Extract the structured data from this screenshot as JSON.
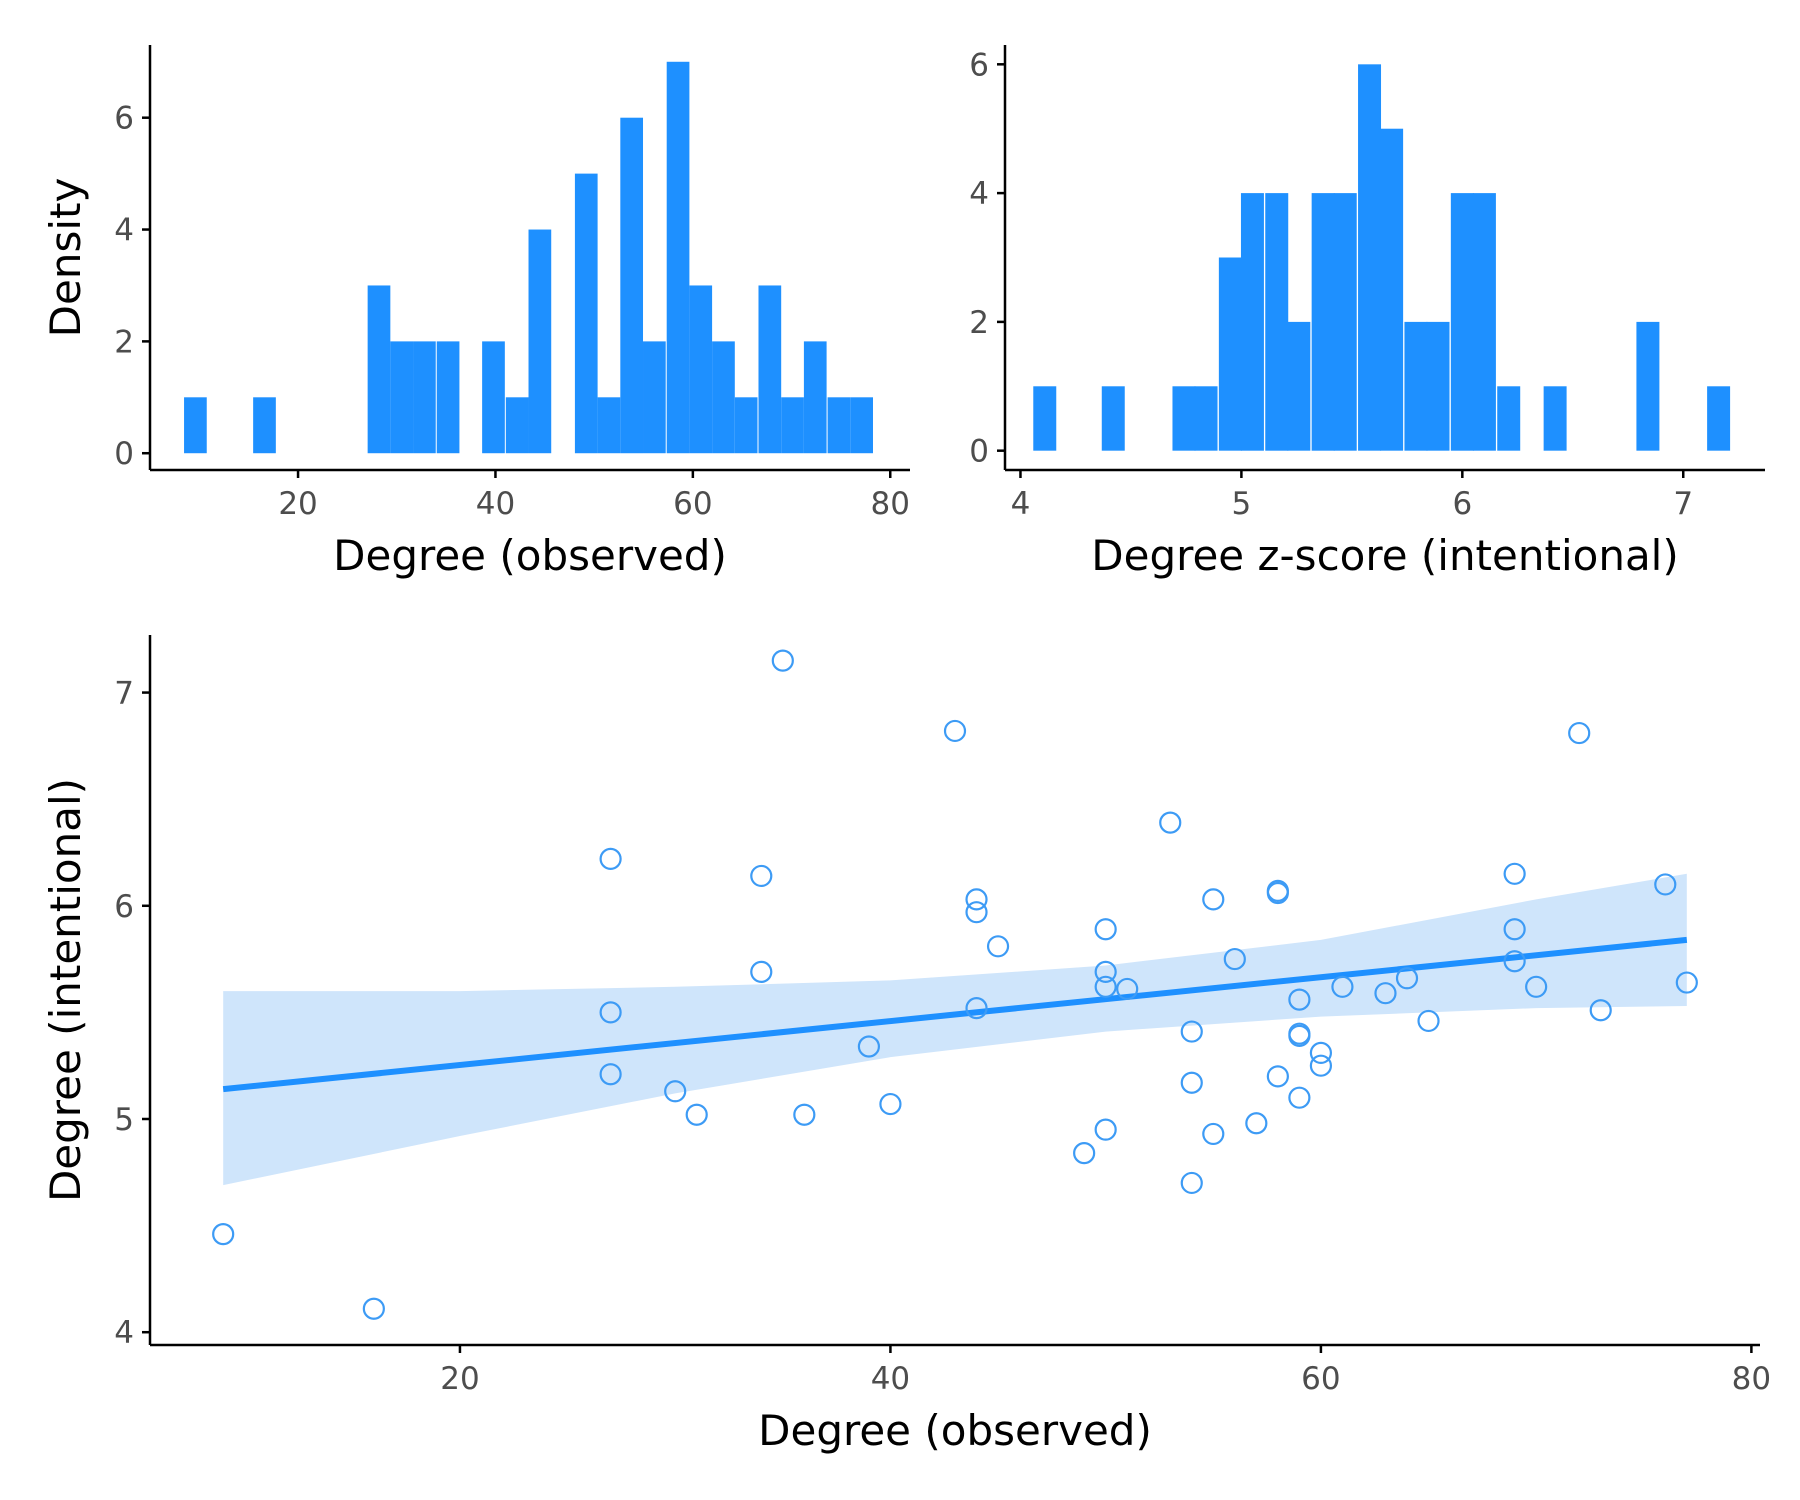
{
  "accent": "#1e90ff",
  "band_color": "#cfe5fb",
  "chart_data": [
    {
      "type": "bar",
      "xlabel": "Degree (observed)",
      "ylabel": "Density",
      "xlim": [
        5,
        82
      ],
      "ylim": [
        -0.3,
        7.3
      ],
      "xticks": [
        20,
        40,
        60,
        80
      ],
      "yticks": [
        0,
        2,
        4,
        6
      ],
      "bin_width": 2.3,
      "bins": [
        {
          "x": 9.6,
          "y": 1
        },
        {
          "x": 16.6,
          "y": 1
        },
        {
          "x": 28.2,
          "y": 3
        },
        {
          "x": 30.5,
          "y": 2
        },
        {
          "x": 32.8,
          "y": 2
        },
        {
          "x": 35.2,
          "y": 2
        },
        {
          "x": 39.8,
          "y": 2
        },
        {
          "x": 42.2,
          "y": 1
        },
        {
          "x": 44.5,
          "y": 4
        },
        {
          "x": 49.2,
          "y": 5
        },
        {
          "x": 51.5,
          "y": 1
        },
        {
          "x": 53.8,
          "y": 6
        },
        {
          "x": 56.1,
          "y": 2
        },
        {
          "x": 58.5,
          "y": 7
        },
        {
          "x": 60.8,
          "y": 3
        },
        {
          "x": 63.1,
          "y": 2
        },
        {
          "x": 65.4,
          "y": 1
        },
        {
          "x": 67.8,
          "y": 3
        },
        {
          "x": 70.1,
          "y": 1
        },
        {
          "x": 72.4,
          "y": 2
        },
        {
          "x": 74.8,
          "y": 1
        },
        {
          "x": 77.1,
          "y": 1
        }
      ]
    },
    {
      "type": "bar",
      "xlabel": "Degree z-score (intentional)",
      "ylabel": "",
      "xlim": [
        3.93,
        7.37
      ],
      "ylim": [
        -0.3,
        6.3
      ],
      "xticks": [
        4,
        5,
        6,
        7
      ],
      "yticks": [
        0,
        2,
        4,
        6
      ],
      "bin_width": 0.104,
      "bins": [
        {
          "x": 4.11,
          "y": 1
        },
        {
          "x": 4.42,
          "y": 1
        },
        {
          "x": 4.74,
          "y": 1
        },
        {
          "x": 4.84,
          "y": 1
        },
        {
          "x": 4.95,
          "y": 3
        },
        {
          "x": 5.05,
          "y": 4
        },
        {
          "x": 5.16,
          "y": 4
        },
        {
          "x": 5.26,
          "y": 2
        },
        {
          "x": 5.37,
          "y": 4
        },
        {
          "x": 5.47,
          "y": 4
        },
        {
          "x": 5.58,
          "y": 6
        },
        {
          "x": 5.68,
          "y": 5
        },
        {
          "x": 5.79,
          "y": 2
        },
        {
          "x": 5.89,
          "y": 2
        },
        {
          "x": 6.0,
          "y": 4
        },
        {
          "x": 6.1,
          "y": 4
        },
        {
          "x": 6.21,
          "y": 1
        },
        {
          "x": 6.42,
          "y": 1
        },
        {
          "x": 6.84,
          "y": 2
        },
        {
          "x": 7.16,
          "y": 1
        }
      ]
    },
    {
      "type": "scatter",
      "xlabel": "Degree (observed)",
      "ylabel": "Degree (intentional)",
      "xlim": [
        5.6,
        80.4
      ],
      "ylim": [
        3.94,
        7.27
      ],
      "xticks": [
        20,
        40,
        60,
        80
      ],
      "yticks": [
        4,
        5,
        6,
        7
      ],
      "grid": false,
      "fit": {
        "x": [
          9,
          77
        ],
        "y": [
          5.14,
          5.84
        ],
        "band": [
          {
            "x": 9,
            "lo": 4.69,
            "hi": 5.6
          },
          {
            "x": 20,
            "lo": 4.92,
            "hi": 5.6
          },
          {
            "x": 30,
            "lo": 5.12,
            "hi": 5.62
          },
          {
            "x": 40,
            "lo": 5.29,
            "hi": 5.65
          },
          {
            "x": 50,
            "lo": 5.41,
            "hi": 5.72
          },
          {
            "x": 60,
            "lo": 5.48,
            "hi": 5.84
          },
          {
            "x": 70,
            "lo": 5.52,
            "hi": 6.03
          },
          {
            "x": 77,
            "lo": 5.53,
            "hi": 6.15
          }
        ]
      },
      "points": [
        {
          "x": 9,
          "y": 4.46
        },
        {
          "x": 16,
          "y": 4.11
        },
        {
          "x": 27,
          "y": 6.22
        },
        {
          "x": 27,
          "y": 5.5
        },
        {
          "x": 27,
          "y": 5.21
        },
        {
          "x": 30,
          "y": 5.13
        },
        {
          "x": 31,
          "y": 5.02
        },
        {
          "x": 34,
          "y": 6.14
        },
        {
          "x": 34,
          "y": 5.69
        },
        {
          "x": 35,
          "y": 7.15
        },
        {
          "x": 36,
          "y": 5.02
        },
        {
          "x": 39,
          "y": 5.34
        },
        {
          "x": 40,
          "y": 5.07
        },
        {
          "x": 43,
          "y": 6.82
        },
        {
          "x": 44,
          "y": 6.03
        },
        {
          "x": 44,
          "y": 5.97
        },
        {
          "x": 44,
          "y": 5.52
        },
        {
          "x": 45,
          "y": 5.81
        },
        {
          "x": 49,
          "y": 4.84
        },
        {
          "x": 50,
          "y": 5.89
        },
        {
          "x": 50,
          "y": 5.69
        },
        {
          "x": 50,
          "y": 5.62
        },
        {
          "x": 50,
          "y": 4.95
        },
        {
          "x": 51,
          "y": 5.61
        },
        {
          "x": 53,
          "y": 6.39
        },
        {
          "x": 54,
          "y": 5.41
        },
        {
          "x": 54,
          "y": 5.17
        },
        {
          "x": 54,
          "y": 4.7
        },
        {
          "x": 55,
          "y": 6.03
        },
        {
          "x": 55,
          "y": 4.93
        },
        {
          "x": 56,
          "y": 5.75
        },
        {
          "x": 57,
          "y": 4.98
        },
        {
          "x": 58,
          "y": 6.07
        },
        {
          "x": 58,
          "y": 6.06
        },
        {
          "x": 58,
          "y": 5.2
        },
        {
          "x": 59,
          "y": 5.56
        },
        {
          "x": 59,
          "y": 5.4
        },
        {
          "x": 59,
          "y": 5.39
        },
        {
          "x": 59,
          "y": 5.1
        },
        {
          "x": 60,
          "y": 5.31
        },
        {
          "x": 60,
          "y": 5.25
        },
        {
          "x": 61,
          "y": 5.62
        },
        {
          "x": 63,
          "y": 5.59
        },
        {
          "x": 64,
          "y": 5.66
        },
        {
          "x": 65,
          "y": 5.46
        },
        {
          "x": 69,
          "y": 6.15
        },
        {
          "x": 69,
          "y": 5.89
        },
        {
          "x": 69,
          "y": 5.74
        },
        {
          "x": 70,
          "y": 5.62
        },
        {
          "x": 72,
          "y": 6.81
        },
        {
          "x": 73,
          "y": 5.51
        },
        {
          "x": 76,
          "y": 6.1
        },
        {
          "x": 77,
          "y": 5.64
        }
      ]
    }
  ]
}
